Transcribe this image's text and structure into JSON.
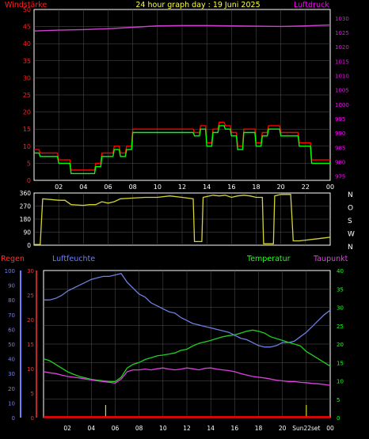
{
  "header": {
    "left_label": "Windstärke",
    "title": "24 hour graph day : 19 Juni 2025",
    "right_label": "Luftdruck"
  },
  "colors": {
    "background": "#000000",
    "axis": "#ffffff",
    "grid": "#555555",
    "wind_left_axis": "#ff2020",
    "pressure_axis": "#ff00ff",
    "wind_gust": "#ff0000",
    "wind_avg": "#00ff00",
    "pressure": "#d040d0",
    "direction": "#d4d433",
    "humidity": "#6f7fdf",
    "temperature": "#20d020",
    "dewpoint": "#e040e0",
    "rain": "#ff0000",
    "rain_axis": "#ff3030",
    "humidity_axis": "#6f7fff",
    "temperature_axis": "#20ff20",
    "rain_event": "#d4d433"
  },
  "chart_data": [
    {
      "id": "wind-pressure",
      "type": "line",
      "title": "24 hour graph day : 19 Juni 2025",
      "x_ticks": [
        "02",
        "04",
        "06",
        "08",
        "10",
        "12",
        "14",
        "16",
        "18",
        "20",
        "22",
        "00"
      ],
      "xlim": [
        0,
        24
      ],
      "left_axis": {
        "label": "Windstärke",
        "ticks": [
          "0",
          "5",
          "10",
          "15",
          "20",
          "25",
          "30",
          "35",
          "40",
          "45",
          "50"
        ],
        "ylim": [
          0,
          50
        ]
      },
      "right_axis": {
        "label": "Luftdruck",
        "ticks": [
          "975",
          "980",
          "985",
          "990",
          "995",
          "1000",
          "1005",
          "1010",
          "1015",
          "1020",
          "1025",
          "1030"
        ],
        "ylim": [
          973.5,
          1033
        ]
      },
      "series": [
        {
          "name": "Windstärke",
          "axis": "left",
          "color": "#ff0000",
          "x": [
            0,
            0.4,
            0.5,
            1.9,
            2.0,
            2.9,
            3.0,
            4.9,
            5.0,
            5.4,
            5.5,
            6.4,
            6.5,
            6.9,
            7.0,
            7.4,
            7.5,
            7.9,
            8.0,
            12.9,
            13.0,
            13.4,
            13.5,
            13.9,
            14.0,
            14.4,
            14.5,
            14.9,
            15.0,
            15.4,
            15.5,
            15.9,
            16.0,
            16.4,
            16.5,
            16.9,
            17.0,
            17.9,
            18.0,
            18.4,
            18.5,
            18.9,
            19.0,
            19.9,
            20.0,
            21.4,
            21.5,
            22.4,
            22.5,
            23.9,
            24.0
          ],
          "values": [
            9,
            9,
            8,
            8,
            6,
            6,
            3,
            3,
            5,
            5,
            8,
            8,
            10,
            10,
            8,
            8,
            10,
            10,
            15,
            15,
            14,
            14,
            16,
            16,
            11,
            11,
            15,
            15,
            17,
            17,
            16,
            16,
            14,
            14,
            10,
            10,
            15,
            15,
            11,
            11,
            14,
            14,
            16,
            16,
            14,
            14,
            11,
            11,
            6,
            6,
            6
          ]
        },
        {
          "name": "",
          "axis": "left",
          "color": "#00ff00",
          "x": [
            0,
            0.4,
            0.5,
            1.9,
            2.0,
            2.9,
            3.0,
            4.9,
            5.0,
            5.4,
            5.5,
            6.4,
            6.5,
            6.9,
            7.0,
            7.4,
            7.5,
            7.9,
            8.0,
            12.9,
            13.0,
            13.4,
            13.5,
            13.9,
            14.0,
            14.4,
            14.5,
            14.9,
            15.0,
            15.4,
            15.5,
            15.9,
            16.0,
            16.4,
            16.5,
            16.9,
            17.0,
            17.9,
            18.0,
            18.4,
            18.5,
            18.9,
            19.0,
            19.9,
            20.0,
            21.4,
            21.5,
            22.4,
            22.5,
            23.9,
            24.0
          ],
          "values": [
            8,
            8,
            7,
            7,
            5,
            5,
            2,
            2,
            4,
            4,
            7,
            7,
            9,
            9,
            7,
            7,
            9,
            9,
            14,
            14,
            13,
            13,
            15,
            15,
            10,
            10,
            14,
            14,
            16,
            16,
            15,
            15,
            13,
            13,
            9,
            9,
            14,
            14,
            10,
            10,
            13,
            13,
            15,
            15,
            13,
            13,
            10,
            10,
            5,
            5,
            5
          ]
        },
        {
          "name": "Luftdruck",
          "axis": "right",
          "color": "#d040d0",
          "x": [
            0,
            2,
            4,
            6,
            8,
            10,
            12,
            14,
            16,
            18,
            20,
            22,
            24
          ],
          "values": [
            1025.5,
            1025.8,
            1026.0,
            1026.3,
            1026.8,
            1027.3,
            1027.4,
            1027.4,
            1027.3,
            1027.2,
            1027.1,
            1027.3,
            1027.6
          ]
        }
      ]
    },
    {
      "id": "wind-direction",
      "type": "line",
      "x_ticks": [],
      "xlim": [
        0,
        24
      ],
      "left_axis": {
        "ticks": [
          "0",
          "90",
          "180",
          "270",
          "360"
        ],
        "ylim": [
          0,
          360
        ]
      },
      "right_axis": {
        "ticks": [
          "N",
          "W",
          "S",
          "O",
          "N"
        ]
      },
      "series": [
        {
          "name": "",
          "color": "#d4d433",
          "x": [
            0,
            0.5,
            0.7,
            2.0,
            2.5,
            3.0,
            4.0,
            4.5,
            5.0,
            5.5,
            6.0,
            6.5,
            7.0,
            8.0,
            9.0,
            10.0,
            11.0,
            12.0,
            12.9,
            13.0,
            13.6,
            13.7,
            14.5,
            15.0,
            15.5,
            16.0,
            16.5,
            17.0,
            17.5,
            18.0,
            18.5,
            18.6,
            19.0,
            19.4,
            19.5,
            20.0,
            20.8,
            21.0,
            21.5,
            22.0,
            22.5,
            23.0,
            23.5,
            24.0
          ],
          "values": [
            5,
            5,
            320,
            310,
            310,
            280,
            275,
            280,
            280,
            300,
            290,
            300,
            320,
            325,
            330,
            330,
            340,
            330,
            320,
            25,
            25,
            330,
            345,
            340,
            345,
            330,
            340,
            345,
            340,
            330,
            330,
            10,
            10,
            10,
            340,
            350,
            350,
            30,
            30,
            35,
            40,
            45,
            50,
            55
          ]
        }
      ]
    },
    {
      "id": "climate",
      "type": "line",
      "x_ticks": [
        "02",
        "04",
        "06",
        "08",
        "10",
        "12",
        "14",
        "16",
        "18",
        "20",
        "Sun22set",
        "00"
      ],
      "xlim": [
        0,
        24
      ],
      "labels": {
        "rain": "Regen",
        "humidity": "Luftfeuchte",
        "temperature": "Temperatur",
        "dewpoint": "Taupunkt"
      },
      "humidity_axis": {
        "ticks": [
          "0",
          "10",
          "20",
          "30",
          "40",
          "50",
          "60",
          "70",
          "80",
          "90",
          "100"
        ],
        "ylim": [
          0,
          100
        ]
      },
      "rain_axis": {
        "ticks": [
          "0",
          "5",
          "10",
          "15",
          "20",
          "25",
          "30"
        ],
        "ylim": [
          0,
          30
        ]
      },
      "temperature_axis": {
        "ticks": [
          "0",
          "5",
          "10",
          "15",
          "20",
          "25",
          "30",
          "35",
          "40"
        ],
        "ylim": [
          0,
          40
        ]
      },
      "series": [
        {
          "name": "Luftfeuchte",
          "axis": "humidity",
          "color": "#6f7fdf",
          "x": [
            0,
            0.5,
            1.0,
            1.5,
            2.0,
            2.5,
            3.0,
            3.5,
            4.0,
            4.5,
            5.0,
            5.5,
            6.0,
            6.5,
            7.0,
            7.5,
            8.0,
            8.5,
            9.0,
            9.5,
            10.0,
            10.5,
            11.0,
            11.5,
            12.0,
            12.5,
            13.0,
            13.5,
            14.0,
            14.5,
            15.0,
            15.5,
            16.0,
            16.5,
            17.0,
            17.5,
            18.0,
            18.5,
            19.0,
            19.5,
            20.0,
            20.5,
            21.0,
            21.5,
            22.0,
            22.5,
            23.0,
            23.5,
            24.0
          ],
          "values": [
            80,
            80,
            81,
            83,
            86,
            88,
            90,
            92,
            94,
            95,
            96,
            96,
            97,
            98,
            92,
            88,
            84,
            82,
            78,
            76,
            74,
            72,
            71,
            68,
            66,
            64,
            63,
            62,
            61,
            60,
            59,
            58,
            56,
            54,
            53,
            51,
            49,
            48,
            48,
            49,
            51,
            51,
            52,
            55,
            58,
            62,
            66,
            70,
            73
          ]
        },
        {
          "name": "Temperatur",
          "axis": "temperature",
          "color": "#20d020",
          "x": [
            0,
            0.5,
            1.0,
            1.5,
            2.0,
            2.5,
            3.0,
            3.5,
            4.0,
            4.5,
            5.0,
            5.5,
            6.0,
            6.5,
            7.0,
            7.5,
            8.0,
            8.5,
            9.0,
            9.5,
            10.0,
            10.5,
            11.0,
            11.5,
            12.0,
            12.5,
            13.0,
            13.5,
            14.0,
            14.5,
            15.0,
            15.5,
            16.0,
            16.5,
            17.0,
            17.5,
            18.0,
            18.5,
            19.0,
            19.5,
            20.0,
            20.5,
            21.0,
            21.5,
            22.0,
            22.5,
            23.0,
            23.5,
            24.0
          ],
          "values": [
            16,
            15.5,
            14.5,
            13.5,
            12.5,
            11.8,
            11.2,
            10.8,
            10.4,
            10.2,
            10.0,
            9.8,
            9.8,
            11.0,
            13.5,
            14.5,
            15.0,
            15.8,
            16.3,
            16.8,
            17.0,
            17.3,
            17.6,
            18.3,
            18.6,
            19.5,
            20.2,
            20.6,
            21.0,
            21.5,
            22.0,
            22.3,
            22.5,
            23.0,
            23.5,
            23.8,
            23.5,
            23.0,
            22.0,
            21.5,
            21.0,
            20.5,
            20.0,
            19.5,
            18.0,
            17.0,
            16.0,
            15.0,
            14.0
          ]
        },
        {
          "name": "Taupunkt",
          "axis": "temperature",
          "color": "#e040e0",
          "x": [
            0,
            0.5,
            1.0,
            1.5,
            2.0,
            2.5,
            3.0,
            3.5,
            4.0,
            4.5,
            5.0,
            5.5,
            6.0,
            6.5,
            7.0,
            7.5,
            8.0,
            8.5,
            9.0,
            9.5,
            10.0,
            10.5,
            11.0,
            11.5,
            12.0,
            12.5,
            13.0,
            13.5,
            14.0,
            14.5,
            15.0,
            15.5,
            16.0,
            16.5,
            17.0,
            17.5,
            18.0,
            18.5,
            19.0,
            19.5,
            20.0,
            20.5,
            21.0,
            21.5,
            22.0,
            22.5,
            23.0,
            23.5,
            24.0
          ],
          "values": [
            12.5,
            12.2,
            12.0,
            11.6,
            11.2,
            11.0,
            10.8,
            10.5,
            10.3,
            10.0,
            9.8,
            9.6,
            9.4,
            10.5,
            12.5,
            13.0,
            13.0,
            13.2,
            13.0,
            13.3,
            13.5,
            13.2,
            13.0,
            13.2,
            13.5,
            13.3,
            13.0,
            13.4,
            13.5,
            13.2,
            13.0,
            12.8,
            12.5,
            12.0,
            11.6,
            11.2,
            11.0,
            10.8,
            10.5,
            10.2,
            10.0,
            9.8,
            9.8,
            9.6,
            9.5,
            9.3,
            9.2,
            9.0,
            8.8
          ]
        },
        {
          "name": "Regen",
          "axis": "rain",
          "color": "#ff0000",
          "x": [
            0,
            24
          ],
          "values": [
            0.1,
            0.1
          ]
        }
      ],
      "markers": [
        {
          "x": 5.2,
          "color": "#d4d433"
        },
        {
          "x": 22.0,
          "color": "#d4d433"
        }
      ]
    }
  ]
}
